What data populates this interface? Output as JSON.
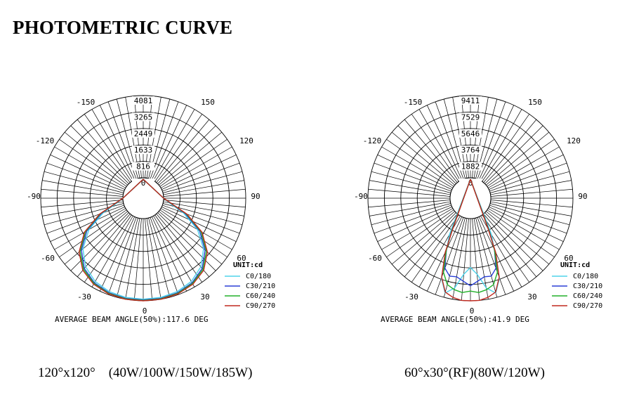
{
  "title": "PHOTOMETRIC CURVE",
  "colors": {
    "C0/180": "#4fd3ea",
    "C30/210": "#2a3fd6",
    "C60/240": "#22b02a",
    "C90/270": "#c0291f"
  },
  "chart_data": [
    {
      "type": "polar",
      "unit_label": "UNIT:cd",
      "ring_labels": [
        "4081",
        "3265",
        "2449",
        "1633",
        "816",
        "0"
      ],
      "max_cd": 4081,
      "angle_labels": [
        "-150",
        "150",
        "-120",
        "120",
        "-90",
        "90",
        "-60",
        "60",
        "-30",
        "30",
        "0"
      ],
      "beam_angle_text": "AVERAGE BEAM ANGLE(50%):117.6 DEG",
      "caption": "120°x120°    (40W/100W/150W/185W)",
      "series": [
        {
          "name": "C0/180",
          "color": "#4fd3ea",
          "angles": [
            0,
            10,
            20,
            30,
            40,
            50,
            60,
            70,
            80,
            90
          ],
          "values": [
            4000,
            3990,
            3920,
            3760,
            3440,
            2900,
            2100,
            1100,
            300,
            0
          ]
        },
        {
          "name": "C30/210",
          "color": "#2a3fd6",
          "angles": [
            0,
            10,
            20,
            30,
            40,
            50,
            60,
            70,
            80,
            90
          ],
          "values": [
            4040,
            4040,
            3980,
            3840,
            3540,
            3000,
            2220,
            1200,
            340,
            0
          ]
        },
        {
          "name": "C60/240",
          "color": "#22b02a",
          "angles": [
            0,
            10,
            20,
            30,
            40,
            50,
            60,
            70,
            80,
            90
          ],
          "values": [
            4060,
            4060,
            4010,
            3880,
            3600,
            3080,
            2300,
            1260,
            360,
            0
          ]
        },
        {
          "name": "C90/270",
          "color": "#c0291f",
          "angles": [
            0,
            10,
            20,
            30,
            40,
            50,
            60,
            70,
            80,
            90
          ],
          "values": [
            4081,
            4081,
            4040,
            3920,
            3660,
            3150,
            2360,
            1300,
            380,
            0
          ]
        }
      ]
    },
    {
      "type": "polar",
      "unit_label": "UNIT:cd",
      "ring_labels": [
        "9411",
        "7529",
        "5646",
        "3764",
        "1882",
        "0"
      ],
      "max_cd": 9411,
      "angle_labels": [
        "-150",
        "150",
        "-120",
        "120",
        "-90",
        "90",
        "-60",
        "60",
        "-30",
        "30",
        "0"
      ],
      "beam_angle_text": "AVERAGE BEAM ANGLE(50%):41.9 DEG",
      "caption": "60°x30°(RF)(80W/120W)",
      "series": [
        {
          "name": "C0/180",
          "color": "#4fd3ea",
          "angles": [
            -30,
            -25,
            -20,
            -15,
            -10,
            -5,
            0,
            5,
            10,
            15,
            20,
            25,
            30
          ],
          "values": [
            2500,
            4100,
            7400,
            8900,
            8100,
            6400,
            5600,
            6400,
            8100,
            8900,
            7400,
            4100,
            2500
          ]
        },
        {
          "name": "C30/210",
          "color": "#2a3fd6",
          "angles": [
            -30,
            -25,
            -20,
            -15,
            -10,
            -5,
            0,
            5,
            10,
            15,
            20,
            25,
            30
          ],
          "values": [
            2000,
            4200,
            6200,
            6900,
            6800,
            7200,
            7700,
            7200,
            6800,
            6900,
            6200,
            4200,
            2000
          ]
        },
        {
          "name": "C60/240",
          "color": "#22b02a",
          "angles": [
            -30,
            -25,
            -20,
            -15,
            -10,
            -5,
            0,
            5,
            10,
            15,
            20,
            25,
            30
          ],
          "values": [
            1900,
            4200,
            6700,
            7900,
            8300,
            8500,
            8300,
            8500,
            8300,
            7900,
            6700,
            4200,
            1900
          ]
        },
        {
          "name": "C90/270",
          "color": "#c0291f",
          "angles": [
            -30,
            -25,
            -20,
            -15,
            -10,
            -5,
            0,
            5,
            10,
            15,
            20,
            25,
            30
          ],
          "values": [
            1700,
            4500,
            7300,
            8800,
            9200,
            9411,
            9411,
            9411,
            9200,
            8800,
            7300,
            4500,
            1700
          ]
        }
      ]
    }
  ]
}
